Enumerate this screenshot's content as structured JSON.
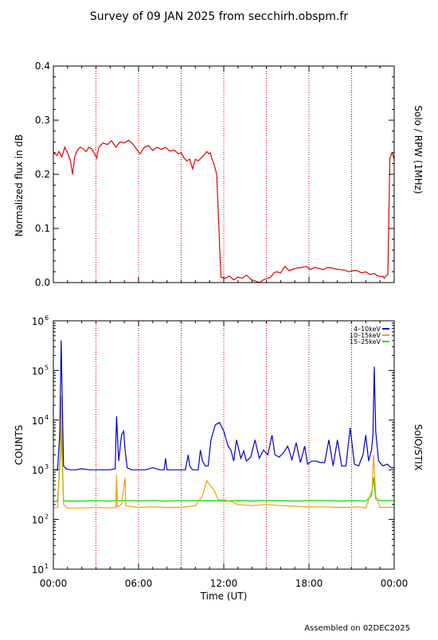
{
  "title": "Survey of 09 JAN 2025 from secchirh.obspm.fr",
  "footer": "Assembled on 02DEC2025",
  "chart_data": [
    {
      "type": "line",
      "name": "rpw",
      "ylabel": "Normalized flux in dB",
      "side_label": "Solo / RPW (1MHz)",
      "xlim": [
        0,
        24
      ],
      "ylim": [
        0,
        0.4
      ],
      "y_ticks": [
        "0.0",
        "0.1",
        "0.2",
        "0.3",
        "0.4"
      ],
      "y_tick_values": [
        0,
        0.1,
        0.2,
        0.3,
        0.4
      ],
      "x_ticks": [
        0,
        6,
        12,
        18,
        24
      ],
      "vlines": [
        3,
        6,
        9,
        12,
        15,
        18,
        21
      ],
      "grid": "dotted vertical lines every 3 h",
      "colors": {
        "series": "#e00000",
        "grid": "#c00000"
      },
      "series": [
        {
          "color": "#e00000",
          "x": [
            0.0,
            0.25,
            0.4,
            0.6,
            0.8,
            1.0,
            1.2,
            1.35,
            1.5,
            1.7,
            1.9,
            2.1,
            2.3,
            2.5,
            2.7,
            2.9,
            3.05,
            3.2,
            3.5,
            3.8,
            4.1,
            4.4,
            4.7,
            5.0,
            5.3,
            5.6,
            5.9,
            6.1,
            6.4,
            6.7,
            7.0,
            7.3,
            7.6,
            7.9,
            8.2,
            8.5,
            8.8,
            9.0,
            9.2,
            9.4,
            9.6,
            9.8,
            10.0,
            10.2,
            10.4,
            10.6,
            10.8,
            10.95,
            11.05,
            11.15,
            11.3,
            11.5,
            11.8,
            12.1,
            12.4,
            12.7,
            13.0,
            13.3,
            13.6,
            13.9,
            14.2,
            14.5,
            14.8,
            15.1,
            15.3,
            15.5,
            15.7,
            16.0,
            16.3,
            16.6,
            16.9,
            17.2,
            17.5,
            17.8,
            18.1,
            18.4,
            18.7,
            19.0,
            19.3,
            19.6,
            19.9,
            20.2,
            20.5,
            20.8,
            21.1,
            21.4,
            21.7,
            22.0,
            22.3,
            22.6,
            22.8,
            23.05,
            23.2,
            23.3,
            23.4,
            23.55,
            23.7,
            23.85,
            24.0
          ],
          "y": [
            0.24,
            0.235,
            0.242,
            0.232,
            0.25,
            0.24,
            0.225,
            0.2,
            0.232,
            0.245,
            0.25,
            0.247,
            0.242,
            0.25,
            0.247,
            0.238,
            0.23,
            0.25,
            0.258,
            0.255,
            0.262,
            0.25,
            0.26,
            0.258,
            0.263,
            0.256,
            0.245,
            0.238,
            0.25,
            0.253,
            0.244,
            0.25,
            0.246,
            0.25,
            0.243,
            0.245,
            0.238,
            0.24,
            0.23,
            0.225,
            0.228,
            0.21,
            0.228,
            0.225,
            0.23,
            0.235,
            0.242,
            0.238,
            0.24,
            0.23,
            0.22,
            0.2,
            0.01,
            0.008,
            0.012,
            0.005,
            0.01,
            0.008,
            0.014,
            0.006,
            0.003,
            0.0,
            0.005,
            0.008,
            0.01,
            0.017,
            0.02,
            0.018,
            0.03,
            0.022,
            0.025,
            0.027,
            0.028,
            0.03,
            0.024,
            0.028,
            0.026,
            0.024,
            0.028,
            0.027,
            0.025,
            0.024,
            0.023,
            0.02,
            0.022,
            0.022,
            0.018,
            0.02,
            0.015,
            0.017,
            0.013,
            0.011,
            0.012,
            0.008,
            0.012,
            0.015,
            0.23,
            0.24,
            0.228
          ]
        }
      ]
    },
    {
      "type": "line",
      "name": "stix",
      "ylabel": "COUNTS",
      "side_label": "SolO/STIX",
      "xlabel": "Time (UT)",
      "xlim": [
        0,
        24
      ],
      "x_ticks": [
        "00:00",
        "06:00",
        "12:00",
        "18:00",
        "00:00"
      ],
      "x_tick_values": [
        0,
        6,
        12,
        18,
        24
      ],
      "ylim": [
        10,
        1000000
      ],
      "yscale": "log",
      "y_ticks_base": [
        "10",
        "10",
        "10",
        "10",
        "10",
        "10"
      ],
      "y_ticks_exp": [
        "1",
        "2",
        "3",
        "4",
        "5",
        "6"
      ],
      "vlines": [
        3,
        6,
        9,
        12,
        15,
        18,
        21
      ],
      "legend_position": "top-right",
      "colors": {
        "blue": "#0000cc",
        "orange": "#f0a000",
        "green": "#00dd00"
      },
      "series": [
        {
          "name": "4–10keV",
          "color": "#0000cc",
          "x": [
            0.0,
            0.3,
            0.45,
            0.55,
            0.62,
            0.72,
            0.9,
            1.2,
            1.6,
            2.0,
            2.5,
            3.0,
            3.5,
            4.0,
            4.35,
            4.45,
            4.6,
            4.8,
            4.95,
            5.05,
            5.2,
            5.5,
            6.0,
            6.5,
            7.0,
            7.5,
            7.8,
            7.9,
            8.0,
            8.5,
            9.0,
            9.3,
            9.5,
            9.6,
            9.8,
            10.2,
            10.35,
            10.5,
            10.7,
            10.9,
            11.1,
            11.4,
            11.7,
            12.0,
            12.3,
            12.5,
            12.7,
            12.9,
            13.2,
            13.4,
            13.6,
            13.9,
            14.2,
            14.5,
            14.8,
            15.1,
            15.4,
            15.6,
            15.9,
            16.2,
            16.5,
            16.8,
            17.1,
            17.4,
            17.7,
            17.9,
            18.2,
            18.5,
            18.8,
            19.1,
            19.4,
            19.7,
            20.0,
            20.3,
            20.6,
            20.9,
            21.2,
            21.5,
            21.8,
            22.0,
            22.2,
            22.4,
            22.5,
            22.6,
            22.7,
            22.9,
            23.2,
            23.5,
            23.8,
            24.0
          ],
          "y": [
            1000,
            1000,
            5000,
            400000,
            30000,
            1200,
            1050,
            1000,
            1000,
            1050,
            1000,
            1000,
            1000,
            1000,
            1050,
            12000,
            1500,
            5000,
            6000,
            2500,
            1100,
            1000,
            1000,
            1000,
            1100,
            1000,
            1000,
            1700,
            1000,
            1000,
            1000,
            1000,
            2000,
            1200,
            1000,
            1000,
            2500,
            1500,
            1200,
            1200,
            4000,
            8000,
            9000,
            6000,
            3000,
            2500,
            1500,
            4000,
            1700,
            2400,
            1500,
            1800,
            4000,
            1700,
            2500,
            2000,
            5000,
            2000,
            1800,
            2200,
            3000,
            1600,
            3500,
            1400,
            3000,
            1300,
            1500,
            1500,
            1400,
            1400,
            4000,
            1200,
            4000,
            1200,
            1200,
            7000,
            1300,
            1200,
            2000,
            5000,
            1500,
            2500,
            5000,
            120000,
            6000,
            1500,
            1200,
            1300,
            1100,
            1100
          ]
        },
        {
          "name": "10–15keV",
          "color": "#f0a000",
          "x": [
            0.0,
            0.3,
            0.5,
            0.55,
            0.62,
            0.72,
            1.0,
            2.0,
            3.0,
            4.0,
            4.4,
            4.45,
            4.5,
            4.8,
            5.05,
            5.1,
            6.0,
            7.0,
            8.0,
            9.0,
            10.0,
            10.5,
            10.8,
            11.0,
            11.3,
            11.6,
            12.0,
            12.5,
            13.0,
            14.0,
            15.0,
            16.0,
            17.0,
            18.0,
            19.0,
            20.0,
            21.0,
            21.5,
            22.0,
            22.45,
            22.55,
            22.7,
            23.0,
            24.0
          ],
          "y": [
            170,
            175,
            3000,
            30000,
            3000,
            200,
            170,
            170,
            175,
            170,
            175,
            800,
            180,
            200,
            700,
            190,
            175,
            180,
            175,
            175,
            190,
            300,
            600,
            500,
            400,
            250,
            250,
            230,
            200,
            190,
            200,
            190,
            185,
            180,
            180,
            175,
            175,
            180,
            170,
            400,
            2000,
            300,
            175,
            175
          ]
        },
        {
          "name": "15–25keV",
          "color": "#00dd00",
          "x": [
            0.0,
            0.3,
            0.5,
            0.55,
            0.62,
            0.72,
            1.0,
            2.0,
            3.0,
            4.0,
            4.4,
            4.45,
            4.5,
            5.0,
            6.0,
            7.0,
            8.0,
            9.0,
            10.0,
            11.0,
            12.0,
            13.0,
            14.0,
            15.0,
            16.0,
            17.0,
            18.0,
            19.0,
            20.0,
            21.0,
            22.0,
            22.4,
            22.55,
            22.7,
            23.0,
            24.0
          ],
          "y": [
            230,
            235,
            2000,
            8000,
            1500,
            240,
            235,
            235,
            240,
            235,
            240,
            500,
            240,
            240,
            235,
            240,
            235,
            240,
            240,
            240,
            235,
            240,
            235,
            240,
            240,
            235,
            240,
            240,
            235,
            240,
            235,
            300,
            700,
            260,
            240,
            240
          ]
        }
      ]
    }
  ]
}
